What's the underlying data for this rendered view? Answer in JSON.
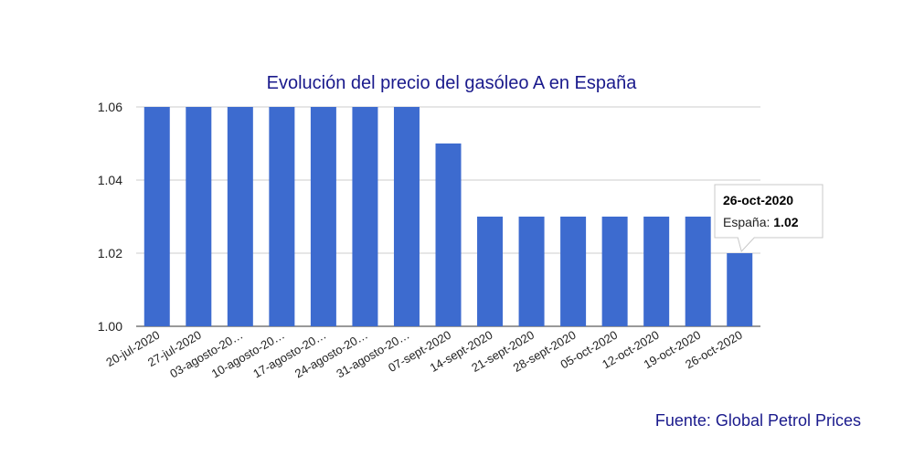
{
  "chart_data": {
    "type": "bar",
    "title": "Evolución del precio del gasóleo A en España",
    "categories": [
      "20-jul-2020",
      "27-jul-2020",
      "03-agosto-20…",
      "10-agosto-20…",
      "17-agosto-20…",
      "24-agosto-20…",
      "31-agosto-20…",
      "07-sept-2020",
      "14-sept-2020",
      "21-sept-2020",
      "28-sept-2020",
      "05-oct-2020",
      "12-oct-2020",
      "19-oct-2020",
      "26-oct-2020"
    ],
    "series": [
      {
        "name": "España",
        "values": [
          1.06,
          1.06,
          1.06,
          1.06,
          1.06,
          1.06,
          1.06,
          1.05,
          1.03,
          1.03,
          1.03,
          1.03,
          1.03,
          1.03,
          1.02
        ]
      }
    ],
    "ylim": [
      1.0,
      1.06
    ],
    "yticks": [
      "1.00",
      "1.02",
      "1.04",
      "1.06"
    ],
    "grid": true,
    "bar_color": "#3d6bcf",
    "title_color": "#1a1a8c",
    "tooltip": {
      "date": "26-oct-2020",
      "series_label": "España: ",
      "value": "1.02",
      "category_index": 14
    },
    "source": "Fuente: Global Petrol Prices"
  }
}
